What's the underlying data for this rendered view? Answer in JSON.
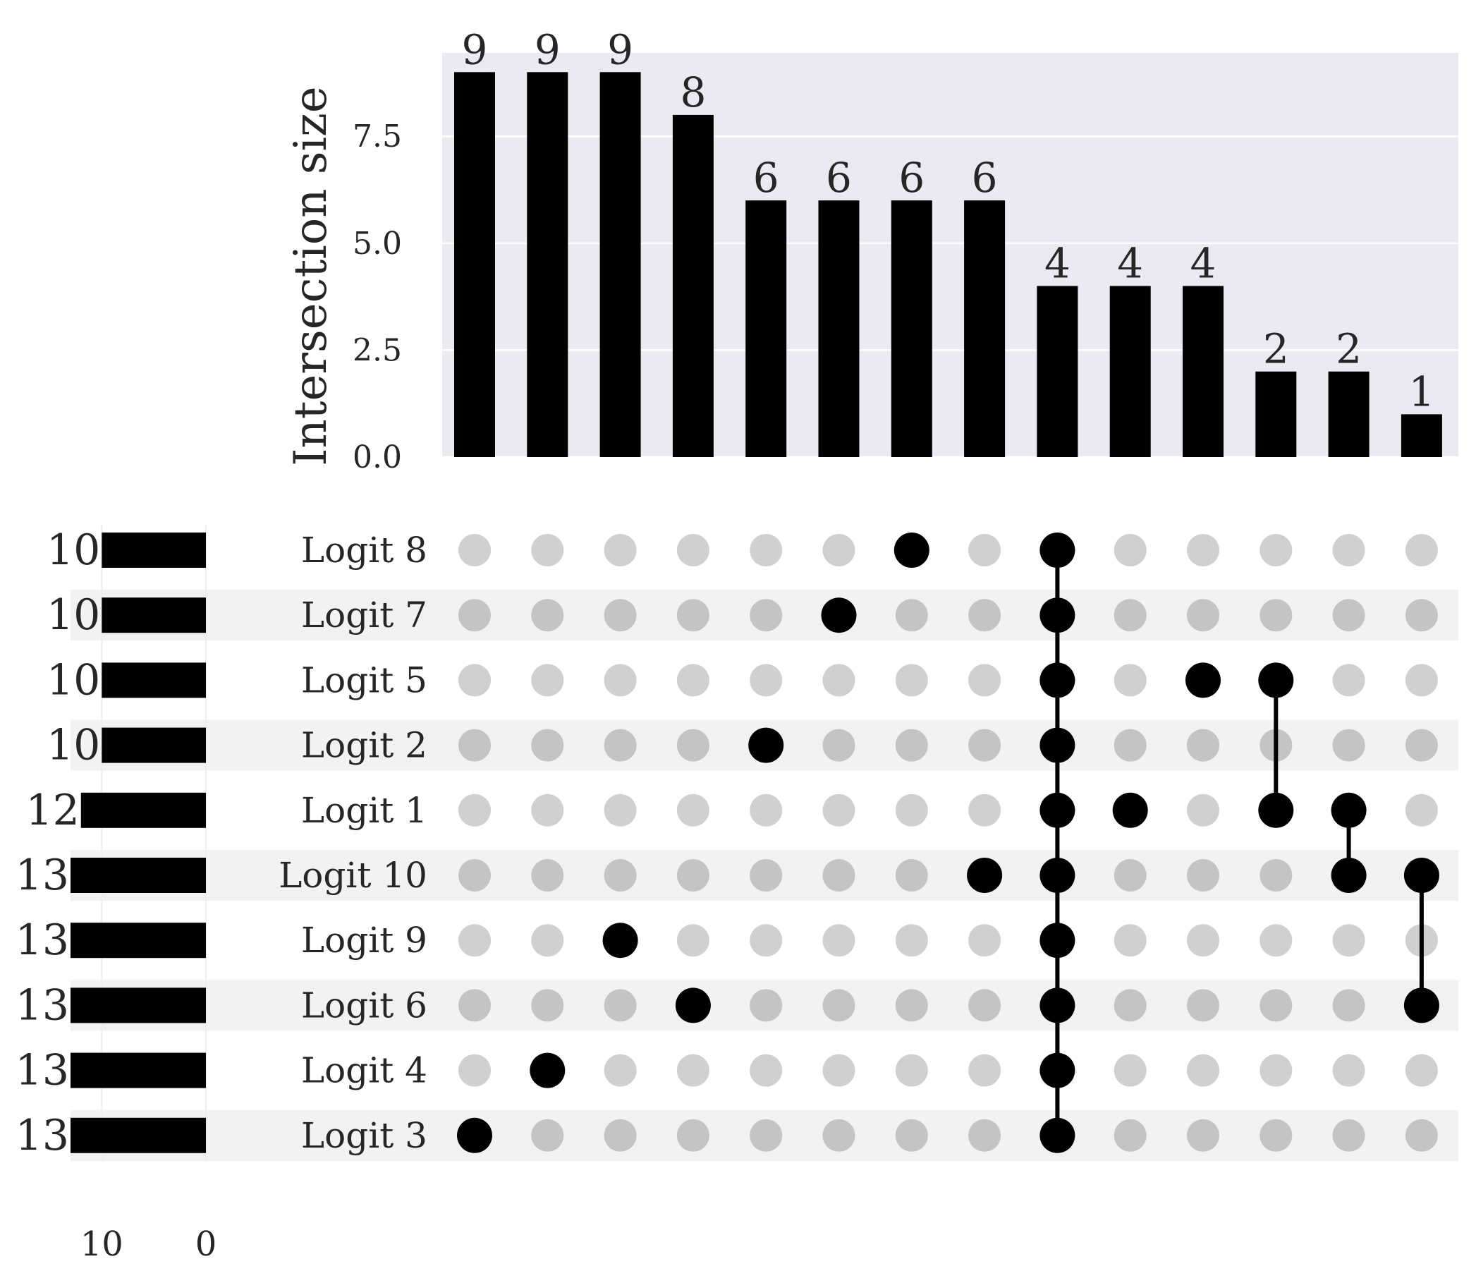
{
  "chart_data": {
    "type": "upset",
    "sets": [
      "Logit 8",
      "Logit 7",
      "Logit 5",
      "Logit 2",
      "Logit 1",
      "Logit 10",
      "Logit 9",
      "Logit 6",
      "Logit 4",
      "Logit 3"
    ],
    "set_sizes": [
      10,
      10,
      10,
      10,
      12,
      13,
      13,
      13,
      13,
      13
    ],
    "set_size_axis": {
      "ticks": [
        10,
        0
      ],
      "range": [
        13,
        0
      ]
    },
    "intersections": [
      {
        "members": [
          "Logit 3"
        ],
        "size": 9,
        "label": "9"
      },
      {
        "members": [
          "Logit 4"
        ],
        "size": 9,
        "label": "9"
      },
      {
        "members": [
          "Logit 9"
        ],
        "size": 9,
        "label": "9"
      },
      {
        "members": [
          "Logit 6"
        ],
        "size": 8,
        "label": "8"
      },
      {
        "members": [
          "Logit 2"
        ],
        "size": 6,
        "label": "6"
      },
      {
        "members": [
          "Logit 7"
        ],
        "size": 6,
        "label": "6"
      },
      {
        "members": [
          "Logit 8"
        ],
        "size": 6,
        "label": "6"
      },
      {
        "members": [
          "Logit 10"
        ],
        "size": 6,
        "label": "6"
      },
      {
        "members": [
          "Logit 8",
          "Logit 7",
          "Logit 5",
          "Logit 2",
          "Logit 1",
          "Logit 10",
          "Logit 9",
          "Logit 6",
          "Logit 4",
          "Logit 3"
        ],
        "size": 4,
        "label": "4"
      },
      {
        "members": [
          "Logit 1"
        ],
        "size": 4,
        "label": "4"
      },
      {
        "members": [
          "Logit 5"
        ],
        "size": 4,
        "label": "4"
      },
      {
        "members": [
          "Logit 5",
          "Logit 1"
        ],
        "size": 2,
        "label": "2"
      },
      {
        "members": [
          "Logit 1",
          "Logit 10"
        ],
        "size": 2,
        "label": "2"
      },
      {
        "members": [
          "Logit 10",
          "Logit 6"
        ],
        "size": 1,
        "label": "1"
      }
    ],
    "intersection_axis": {
      "label": "Intersection size",
      "ticks": [
        "0.0",
        "2.5",
        "5.0",
        "7.5"
      ],
      "tick_values": [
        0,
        2.5,
        5.0,
        7.5
      ],
      "ylim": [
        0,
        9.45
      ]
    },
    "grid": true
  },
  "colors": {
    "bar": "#000000",
    "active_dot": "#000000",
    "inactive_dot": "#d0d0d0",
    "inactive_dot_shaded_row": "#c4c4c4",
    "plot_background": "#eaeaf2",
    "gridline": "#ffffff",
    "shaded_row": "#f2f2f2",
    "text": "#262626"
  }
}
